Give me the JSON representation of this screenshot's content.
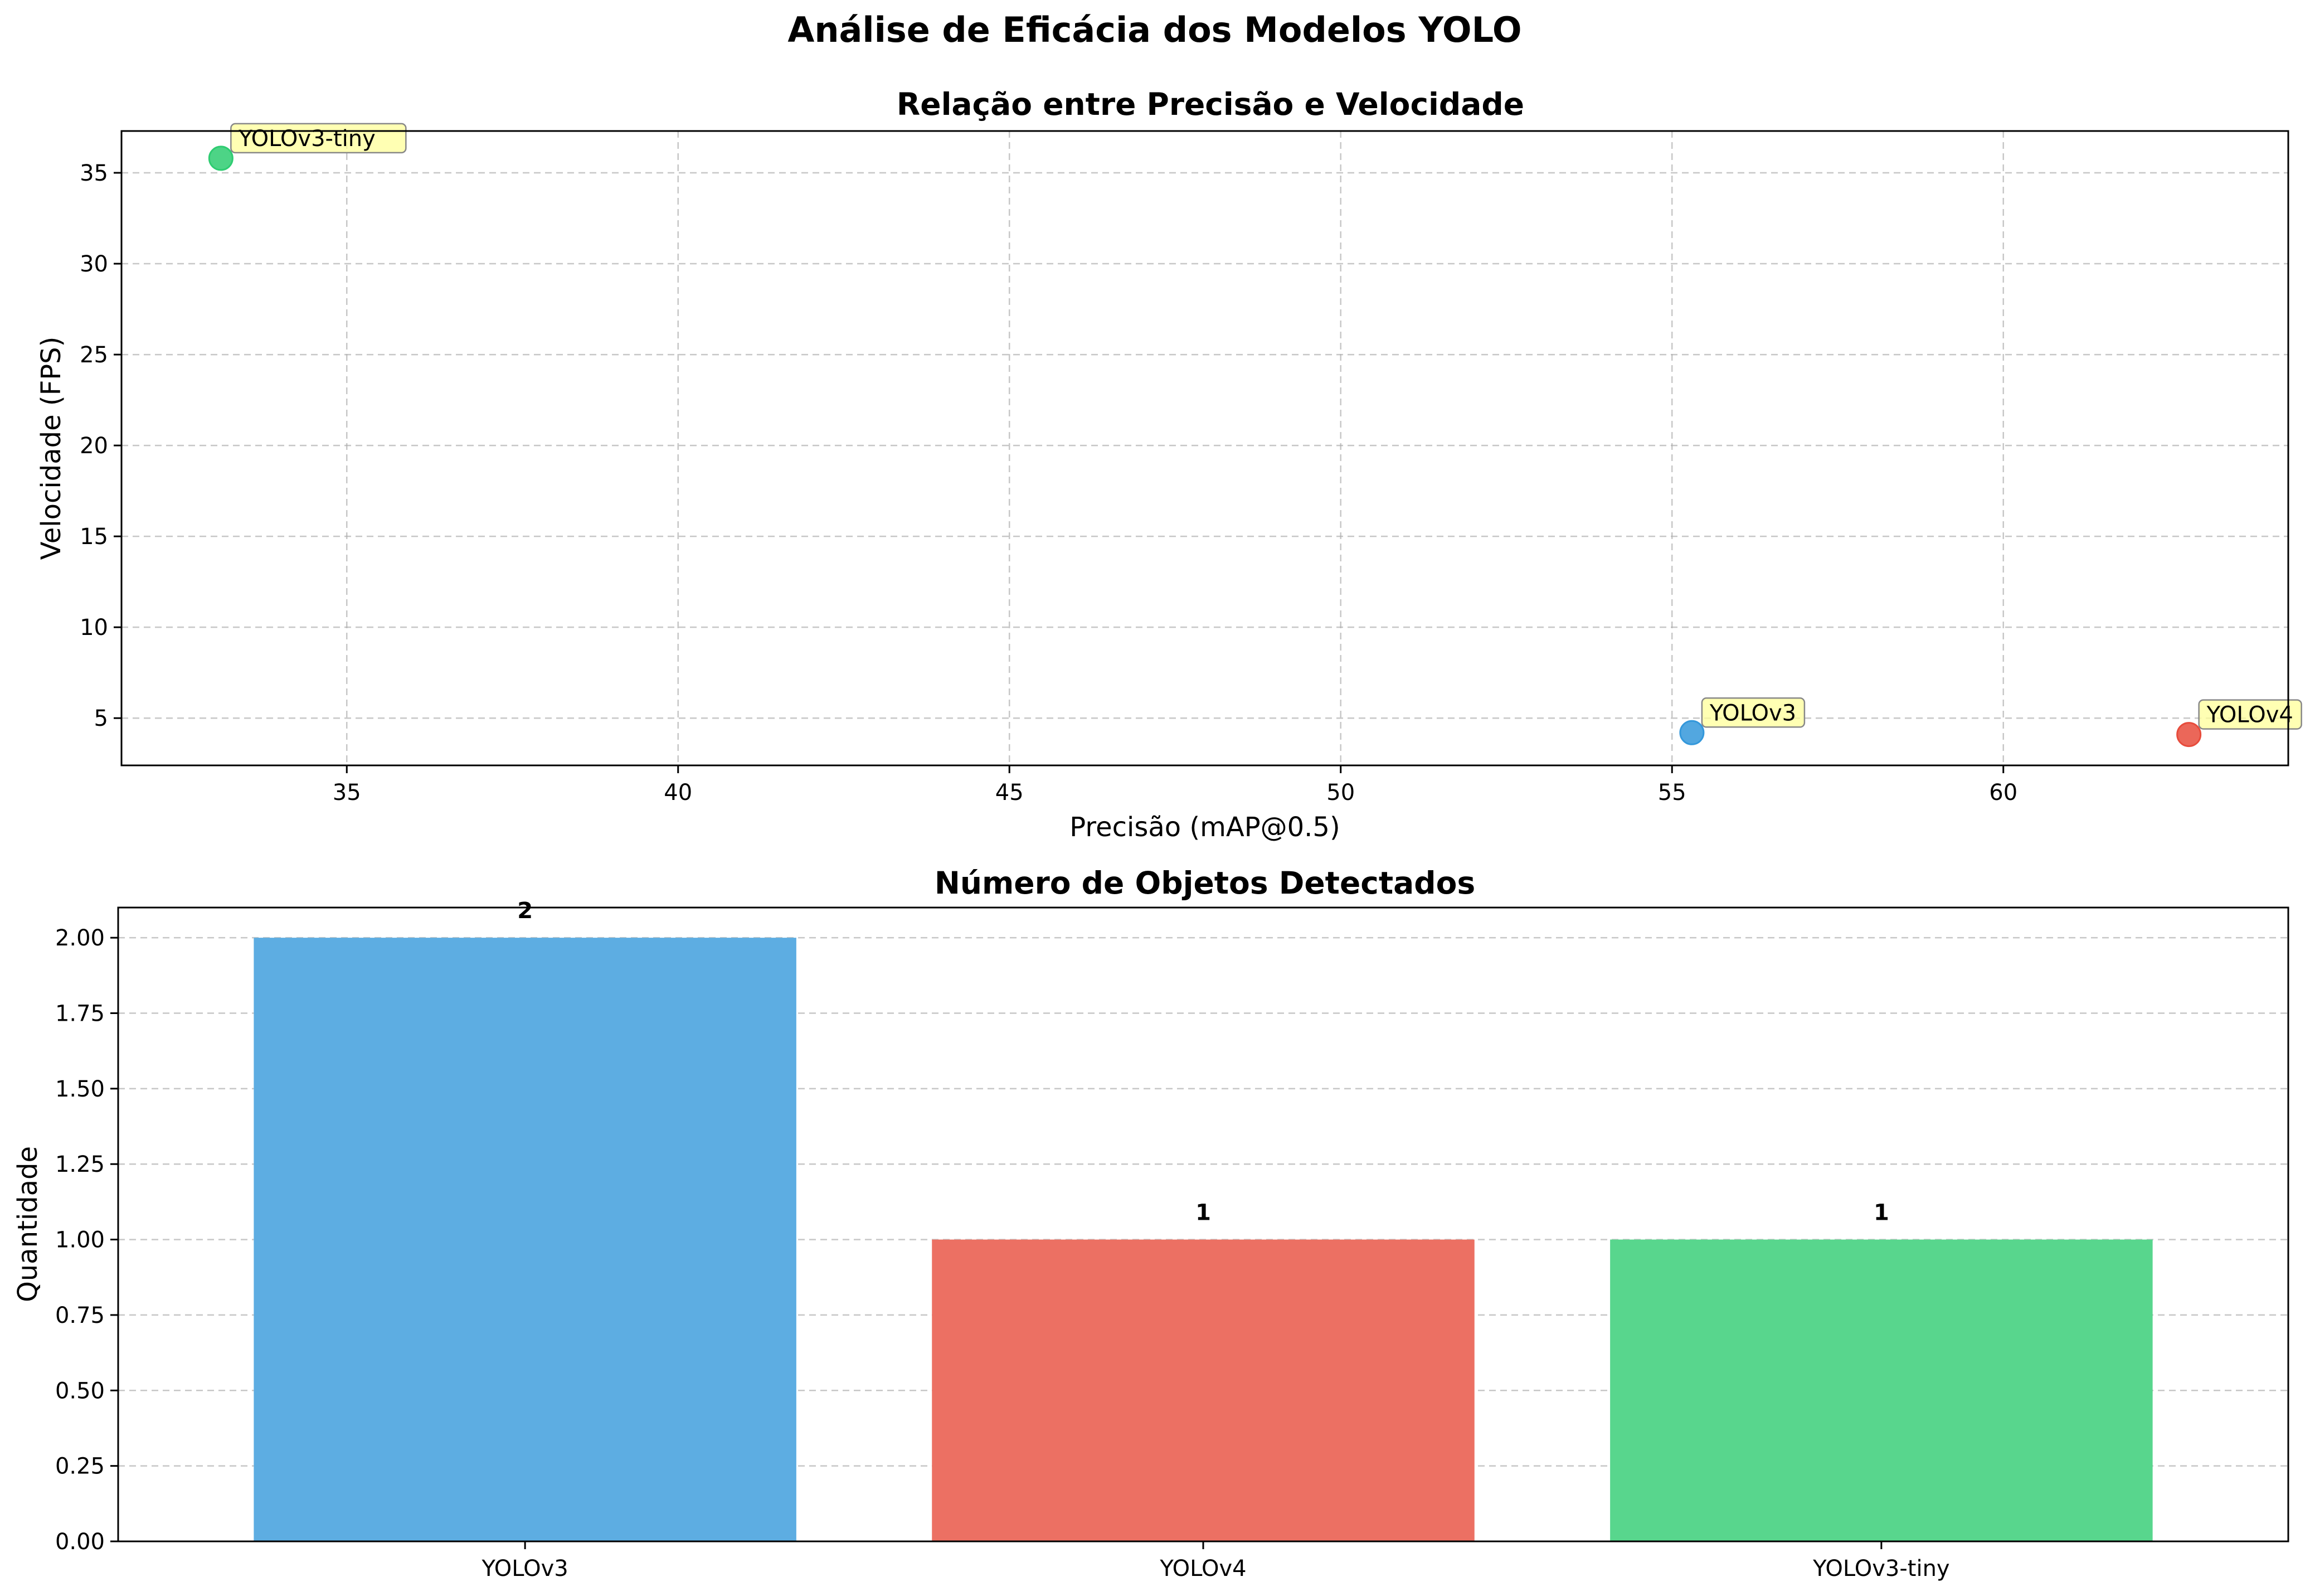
{
  "suptitle": "Análise de Eficácia dos Modelos YOLO",
  "chart_data": [
    {
      "type": "scatter",
      "title": "Relação entre Precisão e Velocidade",
      "xlabel": "Precisão (mAP@0.5)",
      "ylabel": "Velocidade (FPS)",
      "xlim": [
        31.6,
        64.3
      ],
      "ylim": [
        2.4,
        37.3
      ],
      "xticks": [
        35,
        40,
        45,
        50,
        55,
        60
      ],
      "yticks": [
        5,
        10,
        15,
        20,
        25,
        30,
        35
      ],
      "grid": true,
      "points": [
        {
          "label": "YOLOv3",
          "x": 55.3,
          "y": 4.2,
          "color": "#3498db"
        },
        {
          "label": "YOLOv4",
          "x": 62.8,
          "y": 4.1,
          "color": "#e74c3c"
        },
        {
          "label": "YOLOv3-tiny",
          "x": 33.1,
          "y": 35.8,
          "color": "#2ecc71"
        }
      ]
    },
    {
      "type": "bar",
      "title": "Número de Objetos Detectados",
      "xlabel": "",
      "ylabel": "Quantidade",
      "categories": [
        "YOLOv3",
        "YOLOv4",
        "YOLOv3-tiny"
      ],
      "values": [
        2,
        1,
        1
      ],
      "value_labels": [
        "2",
        "1",
        "1"
      ],
      "colors": [
        "#5dade2",
        "#ec7063",
        "#58d68d"
      ],
      "ylim": [
        0,
        2.1
      ],
      "yticks": [
        "0.00",
        "0.25",
        "0.50",
        "0.75",
        "1.00",
        "1.25",
        "1.50",
        "1.75",
        "2.00"
      ],
      "grid": true
    }
  ]
}
